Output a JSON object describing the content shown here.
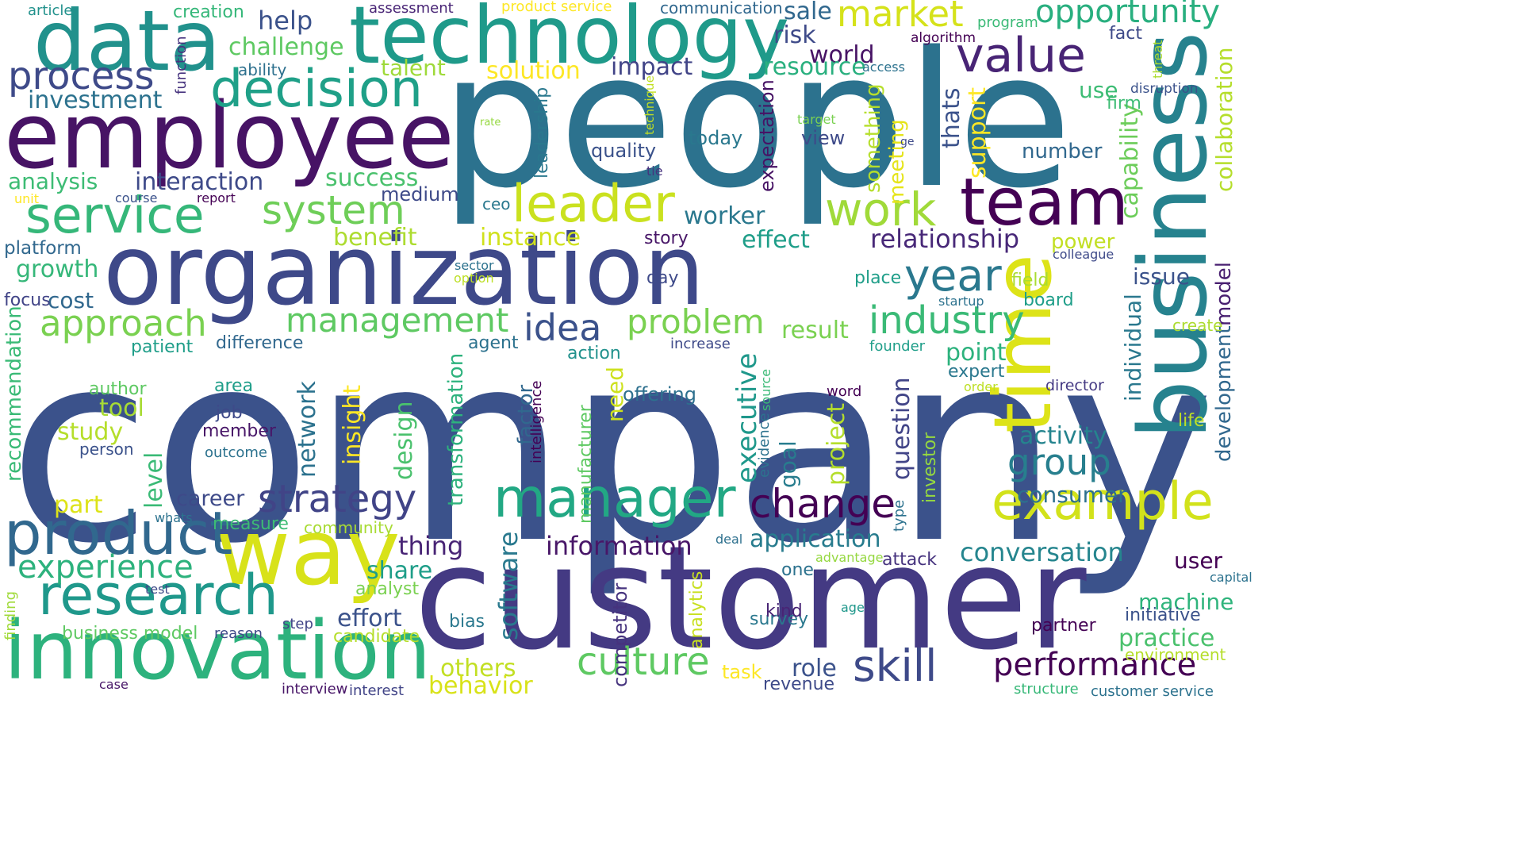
{
  "words": [
    {
      "text": "company",
      "color": "#3b528b",
      "vertical": false
    },
    {
      "text": "people",
      "color": "#2c728e",
      "vertical": false
    },
    {
      "text": "customer",
      "color": "#443a83",
      "vertical": false
    },
    {
      "text": "organization",
      "color": "#3e4989",
      "vertical": false
    },
    {
      "text": "employee",
      "color": "#471365",
      "vertical": false
    },
    {
      "text": "data",
      "color": "#21918c",
      "vertical": false
    },
    {
      "text": "technology",
      "color": "#1f9a8a",
      "vertical": false
    },
    {
      "text": "business",
      "color": "#26828e",
      "vertical": true
    },
    {
      "text": "innovation",
      "color": "#2db27d",
      "vertical": false
    },
    {
      "text": "way",
      "color": "#d8e219",
      "vertical": false
    },
    {
      "text": "time",
      "color": "#dde318",
      "vertical": true
    },
    {
      "text": "team",
      "color": "#440154",
      "vertical": false
    },
    {
      "text": "product",
      "color": "#31688e",
      "vertical": false
    },
    {
      "text": "research",
      "color": "#1f988b",
      "vertical": false
    },
    {
      "text": "manager",
      "color": "#22a884",
      "vertical": false
    },
    {
      "text": "example",
      "color": "#d2e21b",
      "vertical": false
    },
    {
      "text": "decision",
      "color": "#1fa088",
      "vertical": false
    },
    {
      "text": "service",
      "color": "#35b779",
      "vertical": false
    },
    {
      "text": "leader",
      "color": "#cae11f",
      "vertical": false
    },
    {
      "text": "work",
      "color": "#a0da39",
      "vertical": false
    },
    {
      "text": "value",
      "color": "#482475",
      "vertical": false
    },
    {
      "text": "system",
      "color": "#6ece58",
      "vertical": false
    },
    {
      "text": "year",
      "color": "#2a788e",
      "vertical": false
    },
    {
      "text": "change",
      "color": "#440154",
      "vertical": false
    },
    {
      "text": "culture",
      "color": "#5ec962",
      "vertical": false
    },
    {
      "text": "skill",
      "color": "#3e4a89",
      "vertical": false
    },
    {
      "text": "strategy",
      "color": "#414487",
      "vertical": false
    },
    {
      "text": "market",
      "color": "#d5e21a",
      "vertical": false
    },
    {
      "text": "opportunity",
      "color": "#29af7f",
      "vertical": false
    },
    {
      "text": "process",
      "color": "#3e4a89",
      "vertical": false
    },
    {
      "text": "approach",
      "color": "#7ad151",
      "vertical": false
    },
    {
      "text": "industry",
      "color": "#3aba76",
      "vertical": false
    },
    {
      "text": "management",
      "color": "#5ec962",
      "vertical": false
    },
    {
      "text": "problem",
      "color": "#7ad151",
      "vertical": false
    },
    {
      "text": "idea",
      "color": "#3b528b",
      "vertical": false
    },
    {
      "text": "group",
      "color": "#277f8e",
      "vertical": false
    },
    {
      "text": "experience",
      "color": "#2db27d",
      "vertical": false
    },
    {
      "text": "performance",
      "color": "#440154",
      "vertical": false
    },
    {
      "text": "conversation",
      "color": "#25858e",
      "vertical": false
    },
    {
      "text": "application",
      "color": "#287c8e",
      "vertical": false
    },
    {
      "text": "information",
      "color": "#481668",
      "vertical": false
    },
    {
      "text": "relationship",
      "color": "#482878",
      "vertical": false
    },
    {
      "text": "capability",
      "color": "#6ccd5a",
      "vertical": true
    },
    {
      "text": "collaboration",
      "color": "#b5de2b",
      "vertical": true
    },
    {
      "text": "development",
      "color": "#31688e",
      "vertical": true
    },
    {
      "text": "model",
      "color": "#481f70",
      "vertical": true
    },
    {
      "text": "individual",
      "color": "#2a788e",
      "vertical": true
    },
    {
      "text": "executive",
      "color": "#1f988b",
      "vertical": true
    },
    {
      "text": "question",
      "color": "#414487",
      "vertical": true
    },
    {
      "text": "transformation",
      "color": "#2db27d",
      "vertical": true
    },
    {
      "text": "software",
      "color": "#29798e",
      "vertical": true
    },
    {
      "text": "recommendation",
      "color": "#3aba76",
      "vertical": true
    },
    {
      "text": "investment",
      "color": "#2c728e",
      "vertical": false
    },
    {
      "text": "analysis",
      "color": "#3dbc74",
      "vertical": false
    },
    {
      "text": "interaction",
      "color": "#3e4a89",
      "vertical": false
    },
    {
      "text": "challenge",
      "color": "#5ec962",
      "vertical": false
    },
    {
      "text": "help",
      "color": "#3b528b",
      "vertical": false
    },
    {
      "text": "talent",
      "color": "#9fda3a",
      "vertical": false
    },
    {
      "text": "solution",
      "color": "#fde725",
      "vertical": false
    },
    {
      "text": "impact",
      "color": "#414487",
      "vertical": false
    },
    {
      "text": "world",
      "color": "#471365",
      "vertical": false
    },
    {
      "text": "resource",
      "color": "#2ab07f",
      "vertical": false
    },
    {
      "text": "risk",
      "color": "#3e4a89",
      "vertical": false
    },
    {
      "text": "sale",
      "color": "#31688e",
      "vertical": false
    },
    {
      "text": "success",
      "color": "#4ac16d",
      "vertical": false
    },
    {
      "text": "medium",
      "color": "#3e4a89",
      "vertical": false
    },
    {
      "text": "benefit",
      "color": "#addc30",
      "vertical": false
    },
    {
      "text": "instance",
      "color": "#d0e11c",
      "vertical": false
    },
    {
      "text": "worker",
      "color": "#2a788e",
      "vertical": false
    },
    {
      "text": "effect",
      "color": "#1f9e89",
      "vertical": false
    },
    {
      "text": "result",
      "color": "#7ad151",
      "vertical": false
    },
    {
      "text": "growth",
      "color": "#35b779",
      "vertical": false
    },
    {
      "text": "cost",
      "color": "#31688e",
      "vertical": false
    },
    {
      "text": "platform",
      "color": "#31688e",
      "vertical": false
    },
    {
      "text": "tool",
      "color": "#a8db34",
      "vertical": false
    },
    {
      "text": "study",
      "color": "#b5de2b",
      "vertical": false
    },
    {
      "text": "point",
      "color": "#2db27d",
      "vertical": false
    },
    {
      "text": "activity",
      "color": "#25848e",
      "vertical": false
    },
    {
      "text": "consumer",
      "color": "#2d708e",
      "vertical": false
    },
    {
      "text": "thing",
      "color": "#482475",
      "vertical": false
    },
    {
      "text": "effort",
      "color": "#3b528b",
      "vertical": false
    },
    {
      "text": "share",
      "color": "#1f9e89",
      "vertical": false
    },
    {
      "text": "others",
      "color": "#c2df23",
      "vertical": false
    },
    {
      "text": "behavior",
      "color": "#d8e219",
      "vertical": false
    },
    {
      "text": "role",
      "color": "#3b528b",
      "vertical": false
    },
    {
      "text": "practice",
      "color": "#4ac16d",
      "vertical": false
    },
    {
      "text": "machine",
      "color": "#2fb47c",
      "vertical": false
    },
    {
      "text": "user",
      "color": "#440154",
      "vertical": false
    },
    {
      "text": "career",
      "color": "#3e4a89",
      "vertical": false
    },
    {
      "text": "part",
      "color": "#dde318",
      "vertical": false
    },
    {
      "text": "level",
      "color": "#3aba76",
      "vertical": true
    },
    {
      "text": "design",
      "color": "#4ac16d",
      "vertical": true
    },
    {
      "text": "insight",
      "color": "#fde725",
      "vertical": true
    },
    {
      "text": "network",
      "color": "#2c728e",
      "vertical": true
    },
    {
      "text": "project",
      "color": "#b5de2b",
      "vertical": true
    },
    {
      "text": "goal",
      "color": "#287d8e",
      "vertical": true
    },
    {
      "text": "need",
      "color": "#cde11d",
      "vertical": true
    },
    {
      "text": "support",
      "color": "#fde725",
      "vertical": true
    },
    {
      "text": "thats",
      "color": "#3b528b",
      "vertical": true
    },
    {
      "text": "something",
      "color": "#b5de2b",
      "vertical": true
    },
    {
      "text": "meeting",
      "color": "#e5e419",
      "vertical": true
    },
    {
      "text": "expectation",
      "color": "#471365",
      "vertical": true
    },
    {
      "text": "leadership",
      "color": "#2a788e",
      "vertical": true
    },
    {
      "text": "factor",
      "color": "#31688e",
      "vertical": true
    },
    {
      "text": "competitor",
      "color": "#46337e",
      "vertical": true
    },
    {
      "text": "analytics",
      "color": "#c8e020",
      "vertical": true
    },
    {
      "text": "manufacturer",
      "color": "#5ec962",
      "vertical": true
    },
    {
      "text": "investor",
      "color": "#95d840",
      "vertical": true
    },
    {
      "text": "intelligence",
      "color": "#440154",
      "vertical": true
    },
    {
      "text": "evidence",
      "color": "#2c728e",
      "vertical": true
    },
    {
      "text": "source",
      "color": "#3aba76",
      "vertical": true
    },
    {
      "text": "function",
      "color": "#46337e",
      "vertical": true
    },
    {
      "text": "technique",
      "color": "#c2df23",
      "vertical": true
    },
    {
      "text": "threat",
      "color": "#addc30",
      "vertical": true
    },
    {
      "text": "finding",
      "color": "#a0da39",
      "vertical": true
    },
    {
      "text": "type",
      "color": "#2c728e",
      "vertical": true
    },
    {
      "text": "quality",
      "color": "#3b528b",
      "vertical": false
    },
    {
      "text": "today",
      "color": "#2a788e",
      "vertical": false
    },
    {
      "text": "view",
      "color": "#3e4a89",
      "vertical": false
    },
    {
      "text": "number",
      "color": "#31688e",
      "vertical": false
    },
    {
      "text": "use",
      "color": "#3dbc74",
      "vertical": false
    },
    {
      "text": "firm",
      "color": "#3dbc74",
      "vertical": false
    },
    {
      "text": "issue",
      "color": "#3b528b",
      "vertical": false
    },
    {
      "text": "field",
      "color": "#aadc32",
      "vertical": false
    },
    {
      "text": "board",
      "color": "#1f9e89",
      "vertical": false
    },
    {
      "text": "power",
      "color": "#c2df23",
      "vertical": false
    },
    {
      "text": "create",
      "color": "#addc30",
      "vertical": false
    },
    {
      "text": "life",
      "color": "#bddf26",
      "vertical": false
    },
    {
      "text": "expert",
      "color": "#2a788e",
      "vertical": false
    },
    {
      "text": "director",
      "color": "#443983",
      "vertical": false
    },
    {
      "text": "initiative",
      "color": "#3b528b",
      "vertical": false
    },
    {
      "text": "environment",
      "color": "#b5de2b",
      "vertical": false
    },
    {
      "text": "customer service",
      "color": "#2c728e",
      "vertical": false
    },
    {
      "text": "structure",
      "color": "#37b878",
      "vertical": false
    },
    {
      "text": "revenue",
      "color": "#3e4a89",
      "vertical": false
    },
    {
      "text": "task",
      "color": "#fde725",
      "vertical": false
    },
    {
      "text": "survey",
      "color": "#2a788e",
      "vertical": false
    },
    {
      "text": "kind",
      "color": "#482475",
      "vertical": false
    },
    {
      "text": "age",
      "color": "#1f988b",
      "vertical": false
    },
    {
      "text": "partner",
      "color": "#440154",
      "vertical": false
    },
    {
      "text": "capital",
      "color": "#2c728e",
      "vertical": false
    },
    {
      "text": "attack",
      "color": "#46337e",
      "vertical": false
    },
    {
      "text": "one",
      "color": "#2c728e",
      "vertical": false
    },
    {
      "text": "advantage",
      "color": "#95d840",
      "vertical": false
    },
    {
      "text": "deal",
      "color": "#2d708e",
      "vertical": false
    },
    {
      "text": "offering",
      "color": "#2d708e",
      "vertical": false
    },
    {
      "text": "word",
      "color": "#440154",
      "vertical": false
    },
    {
      "text": "order",
      "color": "#bddf26",
      "vertical": false
    },
    {
      "text": "founder",
      "color": "#1f9e89",
      "vertical": false
    },
    {
      "text": "increase",
      "color": "#3e4a89",
      "vertical": false
    },
    {
      "text": "action",
      "color": "#21918c",
      "vertical": false
    },
    {
      "text": "agent",
      "color": "#2c728e",
      "vertical": false
    },
    {
      "text": "difference",
      "color": "#31688e",
      "vertical": false
    },
    {
      "text": "patient",
      "color": "#1f9e89",
      "vertical": false
    },
    {
      "text": "focus",
      "color": "#414487",
      "vertical": false
    },
    {
      "text": "author",
      "color": "#5ec962",
      "vertical": false
    },
    {
      "text": "area",
      "color": "#1f9e89",
      "vertical": false
    },
    {
      "text": "job",
      "color": "#3e4a89",
      "vertical": false
    },
    {
      "text": "member",
      "color": "#481668",
      "vertical": false
    },
    {
      "text": "outcome",
      "color": "#2c728e",
      "vertical": false
    },
    {
      "text": "person",
      "color": "#3b528b",
      "vertical": false
    },
    {
      "text": "whats",
      "color": "#2c728e",
      "vertical": false
    },
    {
      "text": "measure",
      "color": "#3dbc74",
      "vertical": false
    },
    {
      "text": "community",
      "color": "#a8db34",
      "vertical": false
    },
    {
      "text": "test",
      "color": "#3e4a89",
      "vertical": false
    },
    {
      "text": "analyst",
      "color": "#7ad151",
      "vertical": false
    },
    {
      "text": "business model",
      "color": "#5ec962",
      "vertical": false
    },
    {
      "text": "reason",
      "color": "#3e4a89",
      "vertical": false
    },
    {
      "text": "step",
      "color": "#414487",
      "vertical": false
    },
    {
      "text": "bias",
      "color": "#2a788e",
      "vertical": false
    },
    {
      "text": "candidate",
      "color": "#b5de2b",
      "vertical": false
    },
    {
      "text": "case",
      "color": "#481668",
      "vertical": false
    },
    {
      "text": "interview",
      "color": "#481668",
      "vertical": false
    },
    {
      "text": "interest",
      "color": "#414487",
      "vertical": false
    },
    {
      "text": "course",
      "color": "#3b528b",
      "vertical": false
    },
    {
      "text": "report",
      "color": "#440154",
      "vertical": false
    },
    {
      "text": "unit",
      "color": "#fde725",
      "vertical": false
    },
    {
      "text": "ceo",
      "color": "#2a788e",
      "vertical": false
    },
    {
      "text": "story",
      "color": "#481668",
      "vertical": false
    },
    {
      "text": "day",
      "color": "#3e4a89",
      "vertical": false
    },
    {
      "text": "place",
      "color": "#1f9e89",
      "vertical": false
    },
    {
      "text": "startup",
      "color": "#2c728e",
      "vertical": false
    },
    {
      "text": "colleague",
      "color": "#3e4a89",
      "vertical": false
    },
    {
      "text": "sector",
      "color": "#2c728e",
      "vertical": false
    },
    {
      "text": "option",
      "color": "#bddf26",
      "vertical": false
    },
    {
      "text": "rate",
      "color": "#95d840",
      "vertical": false
    },
    {
      "text": "target",
      "color": "#7ad151",
      "vertical": false
    },
    {
      "text": "tie",
      "color": "#46337e",
      "vertical": false
    },
    {
      "text": "ge",
      "color": "#3e4a89",
      "vertical": false
    },
    {
      "text": "ability",
      "color": "#2d708e",
      "vertical": false
    },
    {
      "text": "article",
      "color": "#21918c",
      "vertical": false
    },
    {
      "text": "creation",
      "color": "#35b779",
      "vertical": false
    },
    {
      "text": "assessment",
      "color": "#482475",
      "vertical": false
    },
    {
      "text": "product service",
      "color": "#fde725",
      "vertical": false
    },
    {
      "text": "communication",
      "color": "#31688e",
      "vertical": false
    },
    {
      "text": "program",
      "color": "#3aba76",
      "vertical": false
    },
    {
      "text": "fact",
      "color": "#3e4a89",
      "vertical": false
    },
    {
      "text": "algorithm",
      "color": "#440154",
      "vertical": false
    },
    {
      "text": "access",
      "color": "#2c728e",
      "vertical": false
    },
    {
      "text": "disruption",
      "color": "#3b528b",
      "vertical": false
    }
  ]
}
